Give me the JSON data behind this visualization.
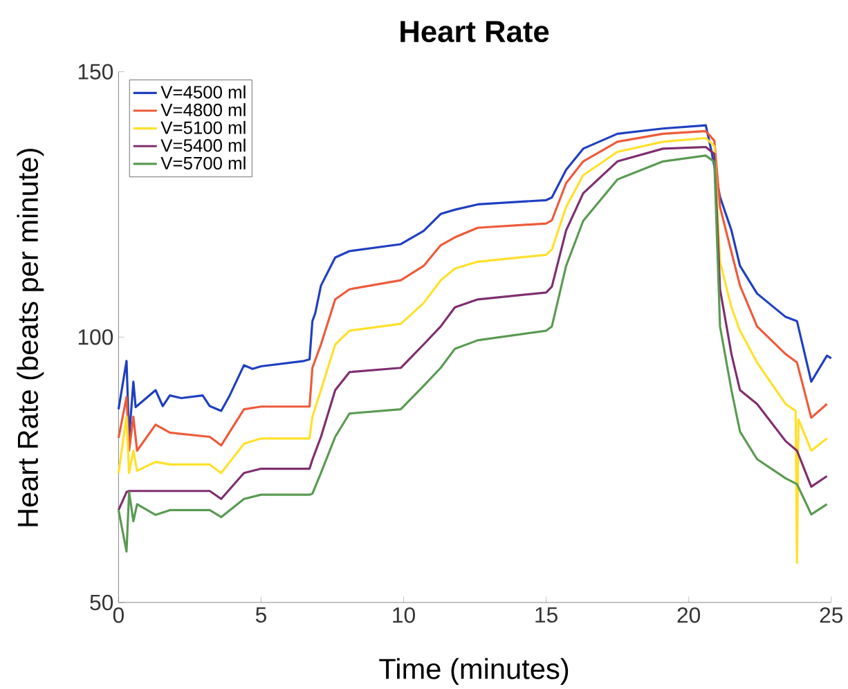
{
  "chart_data": {
    "type": "line",
    "title": "Heart Rate",
    "xlabel": "Time (minutes)",
    "ylabel": "Heart Rate (beats per minute)",
    "xlim": [
      0,
      25
    ],
    "ylim": [
      50,
      150
    ],
    "xticks": [
      0,
      5,
      10,
      15,
      20,
      25
    ],
    "yticks": [
      50,
      100,
      150
    ],
    "legend": "top left",
    "line_style": "solid",
    "marker": "none",
    "series": [
      {
        "name": "V=4500 ml",
        "color": "#1f3fc0",
        "x": [
          0,
          0.28,
          0.37,
          0.52,
          0.6,
          1.3,
          1.55,
          1.8,
          2.2,
          2.95,
          3.2,
          3.6,
          3.9,
          4.4,
          4.7,
          5.0,
          6.5,
          6.7,
          6.8,
          6.9,
          7.1,
          7.6,
          8.1,
          9.9,
          10.7,
          11.3,
          11.8,
          12.6,
          15.0,
          15.2,
          15.7,
          16.3,
          17.5,
          19.1,
          20.6,
          20.8,
          21.1,
          21.5,
          21.8,
          22.4,
          23.4,
          23.8,
          24.3,
          24.85,
          25
        ],
        "values": [
          86.4,
          95.5,
          81,
          91.6,
          86.8,
          90,
          87,
          89,
          88.5,
          89,
          87,
          86.1,
          89,
          94.7,
          94,
          94.5,
          95.5,
          95.8,
          103,
          104.5,
          109.7,
          115,
          116.2,
          117.5,
          120,
          123.2,
          124,
          125,
          125.8,
          126.3,
          131.5,
          135.5,
          138.3,
          139.3,
          139.9,
          135,
          126.4,
          120.1,
          113.4,
          108.2,
          103.8,
          103,
          91.6,
          96.5,
          96
        ]
      },
      {
        "name": "V=4800 ml",
        "color": "#ee5a3a",
        "x": [
          0,
          0.28,
          0.37,
          0.52,
          0.65,
          1.3,
          1.8,
          3.2,
          3.6,
          4.4,
          5.0,
          6.7,
          6.8,
          7.1,
          7.6,
          8.1,
          9.9,
          10.7,
          11.3,
          11.8,
          12.6,
          15.0,
          15.2,
          15.7,
          16.3,
          17.5,
          19.1,
          20.6,
          20.9,
          21.1,
          21.5,
          21.8,
          22.4,
          23.4,
          23.8,
          24.3,
          24.85
        ],
        "values": [
          81,
          88.7,
          78.6,
          85,
          78.6,
          83.5,
          82,
          81.2,
          79.6,
          86.4,
          86.9,
          86.9,
          94.2,
          98.6,
          107.1,
          109,
          110.7,
          113.4,
          117.3,
          118.8,
          120.6,
          121.4,
          122,
          129,
          133.1,
          136.8,
          138.3,
          138.8,
          137,
          124.5,
          116,
          109.7,
          102,
          96.8,
          95.2,
          84.8,
          87.4
        ]
      },
      {
        "name": "V=5100 ml",
        "color": "#ffe02a",
        "x": [
          0,
          0.28,
          0.37,
          0.52,
          0.65,
          1.3,
          1.8,
          3.2,
          3.6,
          4.4,
          5.0,
          6.7,
          6.8,
          7.1,
          7.6,
          8.1,
          9.9,
          10.7,
          11.3,
          11.8,
          12.6,
          15.0,
          15.2,
          15.7,
          16.3,
          17.5,
          19.1,
          20.6,
          20.9,
          21.1,
          21.5,
          21.8,
          22.4,
          23.4,
          23.75,
          23.8,
          23.85,
          24.3,
          24.85
        ],
        "values": [
          74.4,
          85,
          74.4,
          78.6,
          74.8,
          76.5,
          76,
          76,
          74.4,
          79.9,
          80.9,
          80.9,
          85,
          90,
          98.6,
          101.2,
          102.5,
          106.4,
          110.7,
          112.9,
          114.2,
          115.5,
          116.5,
          124.5,
          130.5,
          134.9,
          136.8,
          137.5,
          136,
          114.2,
          105.6,
          101.2,
          95.2,
          87.4,
          86.1,
          57.5,
          84.5,
          78.6,
          80.9
        ]
      },
      {
        "name": "V=5400 ml",
        "color": "#7e2f6e",
        "x": [
          0,
          0.28,
          0.37,
          0.52,
          0.65,
          1.3,
          1.8,
          3.2,
          3.6,
          4.4,
          5.0,
          6.7,
          6.8,
          7.1,
          7.6,
          8.1,
          9.9,
          10.7,
          11.3,
          11.8,
          12.6,
          15.0,
          15.2,
          15.7,
          16.3,
          17.5,
          19.1,
          20.6,
          20.9,
          21.1,
          21.5,
          21.8,
          22.4,
          23.4,
          23.8,
          24.3,
          24.85
        ],
        "values": [
          67.4,
          70.8,
          71,
          71,
          71,
          71,
          71,
          71,
          69.5,
          74.4,
          75.2,
          75.2,
          76.9,
          81.2,
          90,
          93.4,
          94.2,
          98.6,
          102,
          105.6,
          107.1,
          108.4,
          109.5,
          120.1,
          127.1,
          133.1,
          135.5,
          135.8,
          134.5,
          109,
          96.8,
          90,
          87.4,
          80.4,
          78.6,
          71.8,
          73.8
        ]
      },
      {
        "name": "V=5700 ml",
        "color": "#5a9a52",
        "x": [
          0,
          0.28,
          0.37,
          0.52,
          0.65,
          1.3,
          1.8,
          3.2,
          3.6,
          4.4,
          5.0,
          6.7,
          6.8,
          7.1,
          7.6,
          8.1,
          9.9,
          10.7,
          11.3,
          11.8,
          12.6,
          15.0,
          15.2,
          15.7,
          16.3,
          17.5,
          19.1,
          20.6,
          20.9,
          21.1,
          21.5,
          21.8,
          22.4,
          23.4,
          23.8,
          24.3,
          24.85
        ],
        "values": [
          67.4,
          59.6,
          70.8,
          65.3,
          68.5,
          66.5,
          67.4,
          67.4,
          66.1,
          69.5,
          70.3,
          70.3,
          70.5,
          74.4,
          81.2,
          85.6,
          86.4,
          90.8,
          94.2,
          97.8,
          99.4,
          101.2,
          102,
          113.4,
          121.9,
          129.7,
          133.1,
          134.2,
          133,
          102,
          90,
          82.2,
          77,
          73.4,
          72.3,
          66.6,
          68.5
        ]
      }
    ]
  }
}
